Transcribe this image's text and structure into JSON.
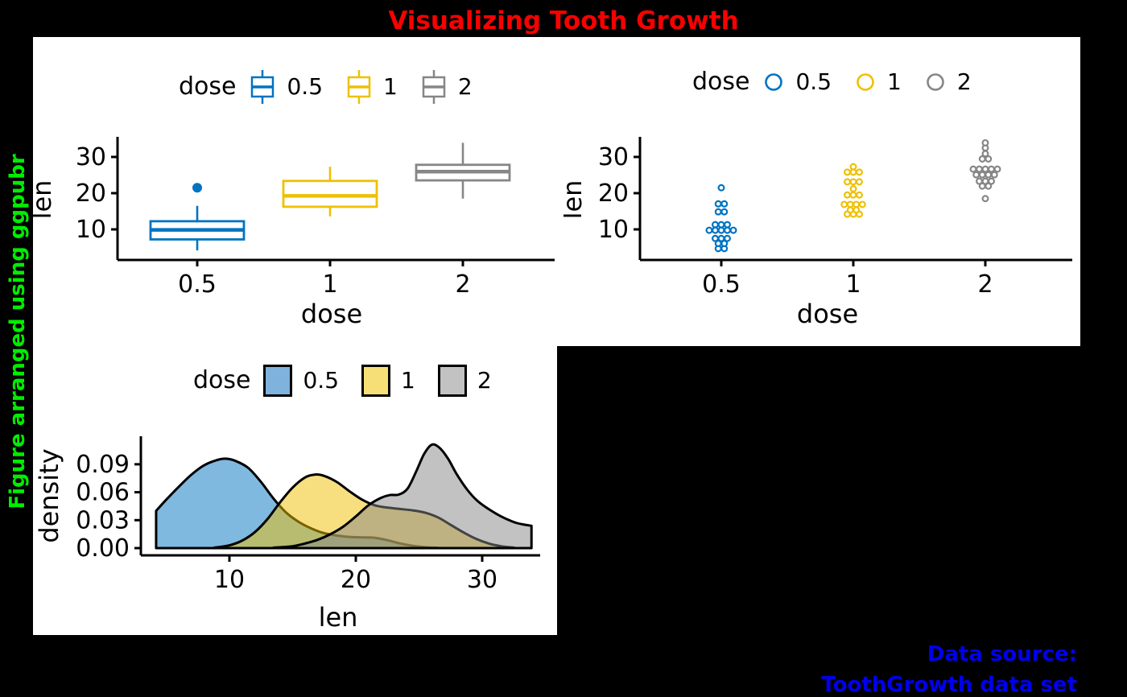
{
  "figure": {
    "title": "Visualizing Tooth Growth",
    "title_color": "#fa0000",
    "left_label": "Figure arranged using ggpubr",
    "left_label_color": "#00ee00",
    "source_line1": "Data source:",
    "source_line2": "ToothGrowth data set",
    "source_color": "#0000ee",
    "background": "#000000",
    "panel_background": "#ffffff"
  },
  "palette": {
    "dose_05": "#0073C2",
    "dose_1": "#EFC000",
    "dose_2": "#868686"
  },
  "chart_data": [
    {
      "id": "box",
      "type": "box",
      "xlabel": "dose",
      "ylabel": "len",
      "x_categories": [
        "0.5",
        "1",
        "2"
      ],
      "y_ticks": [
        {
          "v": 10,
          "label": "10"
        },
        {
          "v": 20,
          "label": "20"
        },
        {
          "v": 30,
          "label": "30"
        }
      ],
      "ylim": [
        1.5,
        35.5
      ],
      "grid": false,
      "legend": {
        "title": "dose",
        "position": "top",
        "entries": [
          {
            "label": "0.5",
            "color": "#0073C2"
          },
          {
            "label": "1",
            "color": "#EFC000"
          },
          {
            "label": "2",
            "color": "#868686"
          }
        ]
      },
      "groups": [
        {
          "dose": "0.5",
          "color": "#0073C2",
          "whisker_low": 4.2,
          "q1": 7.23,
          "median": 9.85,
          "q3": 12.25,
          "whisker_high": 16.5,
          "outliers": [
            21.5
          ]
        },
        {
          "dose": "1",
          "color": "#EFC000",
          "whisker_low": 13.6,
          "q1": 16.25,
          "median": 19.25,
          "q3": 23.38,
          "whisker_high": 27.3,
          "outliers": []
        },
        {
          "dose": "2",
          "color": "#868686",
          "whisker_low": 18.5,
          "q1": 23.53,
          "median": 25.95,
          "q3": 27.83,
          "whisker_high": 33.9,
          "outliers": []
        }
      ]
    },
    {
      "id": "dot",
      "type": "dotplot",
      "xlabel": "dose",
      "ylabel": "len",
      "x_categories": [
        "0.5",
        "1",
        "2"
      ],
      "y_ticks": [
        {
          "v": 10,
          "label": "10"
        },
        {
          "v": 20,
          "label": "20"
        },
        {
          "v": 30,
          "label": "30"
        }
      ],
      "ylim": [
        1.5,
        35.5
      ],
      "grid": false,
      "legend": {
        "title": "dose",
        "position": "top",
        "entries": [
          {
            "label": "0.5",
            "color": "#0073C2"
          },
          {
            "label": "1",
            "color": "#EFC000"
          },
          {
            "label": "2",
            "color": "#868686"
          }
        ]
      },
      "groups": [
        {
          "dose": "0.5",
          "color": "#0073C2",
          "values": [
            4.2,
            11.5,
            7.3,
            5.8,
            6.4,
            10.0,
            11.2,
            11.2,
            5.2,
            7.0,
            15.2,
            21.5,
            17.6,
            9.7,
            14.5,
            10.0,
            8.2,
            9.4,
            16.5,
            9.7
          ]
        },
        {
          "dose": "1",
          "color": "#EFC000",
          "values": [
            16.5,
            16.5,
            15.2,
            17.3,
            22.5,
            17.3,
            13.6,
            14.5,
            18.8,
            15.5,
            19.7,
            23.3,
            23.6,
            26.4,
            20.0,
            25.2,
            25.8,
            21.2,
            14.5,
            27.3
          ]
        },
        {
          "dose": "2",
          "color": "#868686",
          "values": [
            23.6,
            18.5,
            33.9,
            25.5,
            26.4,
            32.5,
            26.7,
            21.5,
            23.3,
            29.5,
            25.5,
            26.4,
            22.4,
            24.5,
            24.8,
            30.9,
            26.4,
            27.3,
            29.4,
            23.0
          ]
        }
      ]
    },
    {
      "id": "density",
      "type": "density",
      "xlabel": "len",
      "ylabel": "density",
      "x_ticks": [
        {
          "v": 10,
          "label": "10"
        },
        {
          "v": 20,
          "label": "20"
        },
        {
          "v": 30,
          "label": "30"
        }
      ],
      "y_ticks": [
        {
          "v": 0.0,
          "label": "0.00"
        },
        {
          "v": 0.03,
          "label": "0.03"
        },
        {
          "v": 0.06,
          "label": "0.06"
        },
        {
          "v": 0.09,
          "label": "0.09"
        }
      ],
      "xlim": [
        4,
        34.5
      ],
      "ylim": [
        0,
        0.118
      ],
      "grid": false,
      "legend": {
        "title": "dose",
        "position": "top",
        "entries": [
          {
            "label": "0.5",
            "color": "#0073C2",
            "swatch": "#7FB2DC"
          },
          {
            "label": "1",
            "color": "#EFC000",
            "swatch": "#F7DF78"
          },
          {
            "label": "2",
            "color": "#868686",
            "swatch": "#C2C2C2"
          }
        ]
      },
      "curves": [
        {
          "dose": "0.5",
          "line": "#000000",
          "fill": "#0073C2",
          "points": [
            [
              4.2,
              0.04
            ],
            [
              5.0,
              0.052
            ],
            [
              6.0,
              0.066
            ],
            [
              7.0,
              0.079
            ],
            [
              8.0,
              0.089
            ],
            [
              9.0,
              0.0945
            ],
            [
              9.7,
              0.096
            ],
            [
              10.5,
              0.0935
            ],
            [
              11.5,
              0.086
            ],
            [
              12.5,
              0.071
            ],
            [
              13.5,
              0.053
            ],
            [
              14.5,
              0.038
            ],
            [
              15.5,
              0.028
            ],
            [
              16.5,
              0.021
            ],
            [
              17.5,
              0.016
            ],
            [
              18.5,
              0.0135
            ],
            [
              19.5,
              0.012
            ],
            [
              20.5,
              0.0115
            ],
            [
              21.5,
              0.011
            ],
            [
              22.5,
              0.0085
            ],
            [
              23.5,
              0.005
            ],
            [
              24.5,
              0.0025
            ],
            [
              25.5,
              0.001
            ],
            [
              26.5,
              0.0003
            ]
          ]
        },
        {
          "dose": "1",
          "line": "#000000",
          "fill": "#EFC000",
          "points": [
            [
              8.8,
              0.0005
            ],
            [
              10,
              0.003
            ],
            [
              11,
              0.008
            ],
            [
              12,
              0.017
            ],
            [
              13,
              0.031
            ],
            [
              14,
              0.049
            ],
            [
              15,
              0.065
            ],
            [
              16,
              0.076
            ],
            [
              16.8,
              0.079
            ],
            [
              17.5,
              0.0775
            ],
            [
              18.5,
              0.071
            ],
            [
              19.5,
              0.061
            ],
            [
              20.5,
              0.052
            ],
            [
              21.5,
              0.046
            ],
            [
              22.5,
              0.0435
            ],
            [
              23.5,
              0.042
            ],
            [
              24.5,
              0.0405
            ],
            [
              25.5,
              0.038
            ],
            [
              26.5,
              0.033
            ],
            [
              27.5,
              0.025
            ],
            [
              28.5,
              0.017
            ],
            [
              29.5,
              0.01
            ],
            [
              30.5,
              0.005
            ],
            [
              31.5,
              0.002
            ],
            [
              32.5,
              0.0005
            ]
          ]
        },
        {
          "dose": "2",
          "line": "#000000",
          "fill": "#868686",
          "points": [
            [
              13.5,
              0.0005
            ],
            [
              15,
              0.002
            ],
            [
              16,
              0.005
            ],
            [
              17,
              0.009
            ],
            [
              18,
              0.015
            ],
            [
              19,
              0.023
            ],
            [
              20,
              0.034
            ],
            [
              21,
              0.046
            ],
            [
              22,
              0.054
            ],
            [
              22.7,
              0.057
            ],
            [
              23.4,
              0.0575
            ],
            [
              24.1,
              0.064
            ],
            [
              24.8,
              0.083
            ],
            [
              25.4,
              0.101
            ],
            [
              26.0,
              0.111
            ],
            [
              26.6,
              0.108
            ],
            [
              27.3,
              0.096
            ],
            [
              28.0,
              0.079
            ],
            [
              28.8,
              0.063
            ],
            [
              29.6,
              0.051
            ],
            [
              30.5,
              0.042
            ],
            [
              31.5,
              0.034
            ],
            [
              32.5,
              0.028
            ],
            [
              33.2,
              0.0255
            ],
            [
              33.9,
              0.024
            ]
          ]
        }
      ]
    }
  ]
}
